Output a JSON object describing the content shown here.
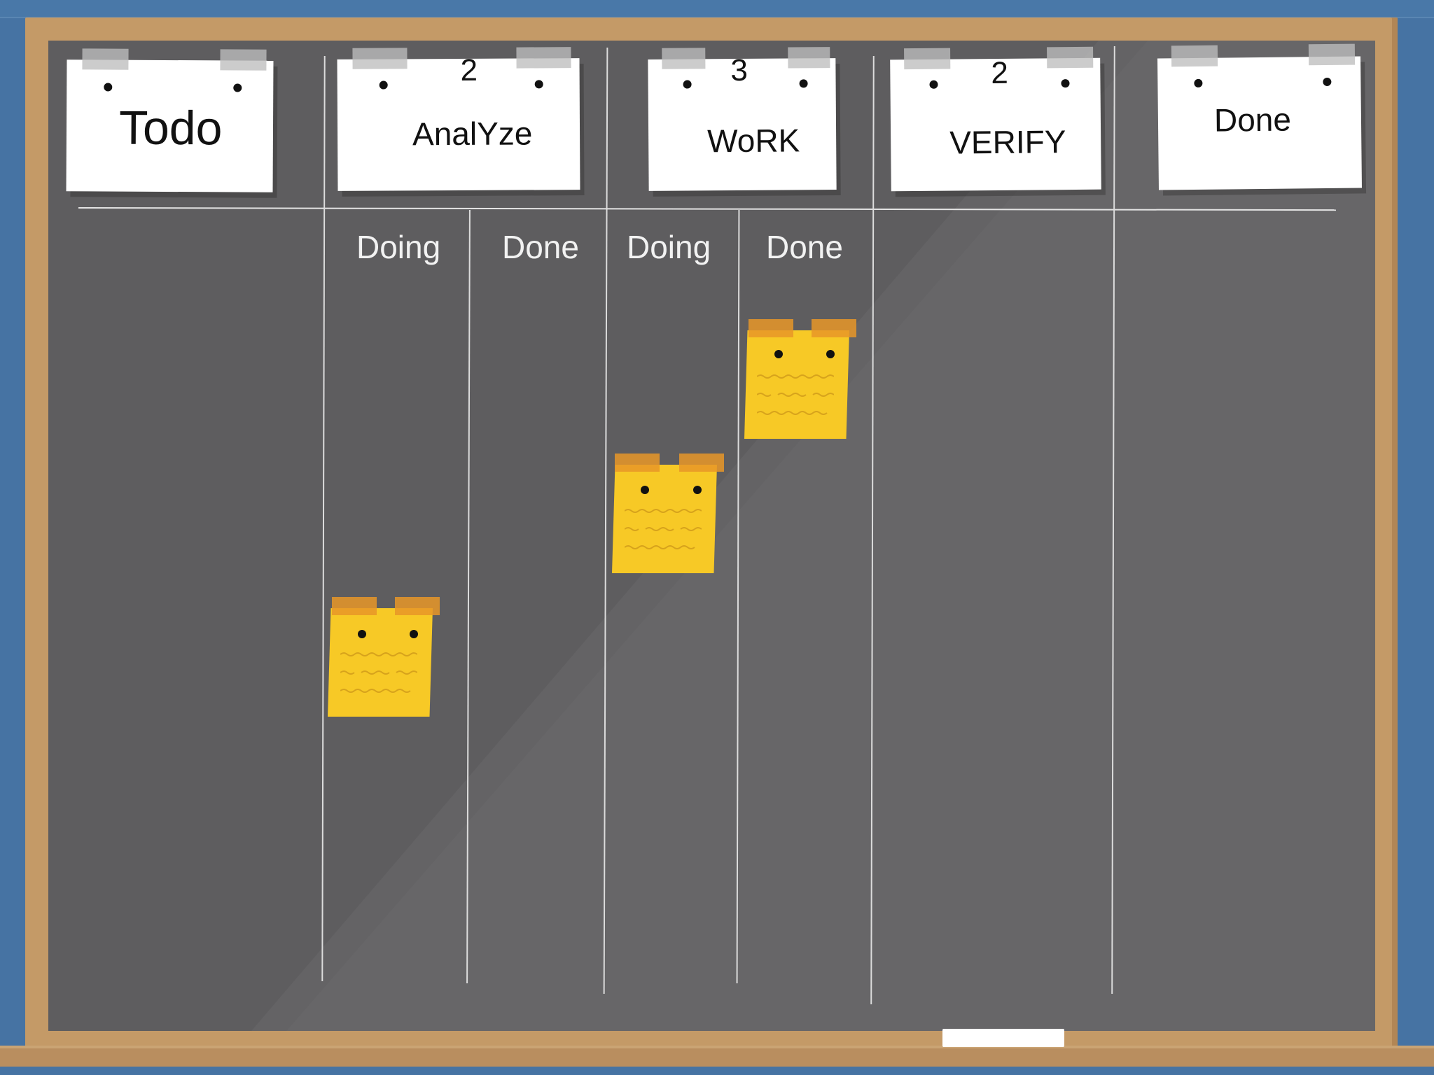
{
  "board": {
    "columns": [
      {
        "title": "Todo",
        "limit": ""
      },
      {
        "title": "AnalYze",
        "limit": "2"
      },
      {
        "title": "WoRK",
        "limit": "3"
      },
      {
        "title": "VERIFY",
        "limit": "2"
      },
      {
        "title": "Done",
        "limit": ""
      }
    ],
    "sub_columns": [
      "Doing",
      "Done",
      "Doing",
      "Done"
    ],
    "cards_in": [
      "AnalYze / Doing",
      "WoRK / Doing",
      "WoRK / Done"
    ]
  },
  "colors": {
    "board": "#5e5d5f",
    "frame": "#c49a67",
    "wall": "#4673a3",
    "sticky": "#f7c926",
    "sticky_tape": "#e79628"
  },
  "icons": [
    "pin-icon",
    "tape-icon",
    "chalk-icon"
  ]
}
